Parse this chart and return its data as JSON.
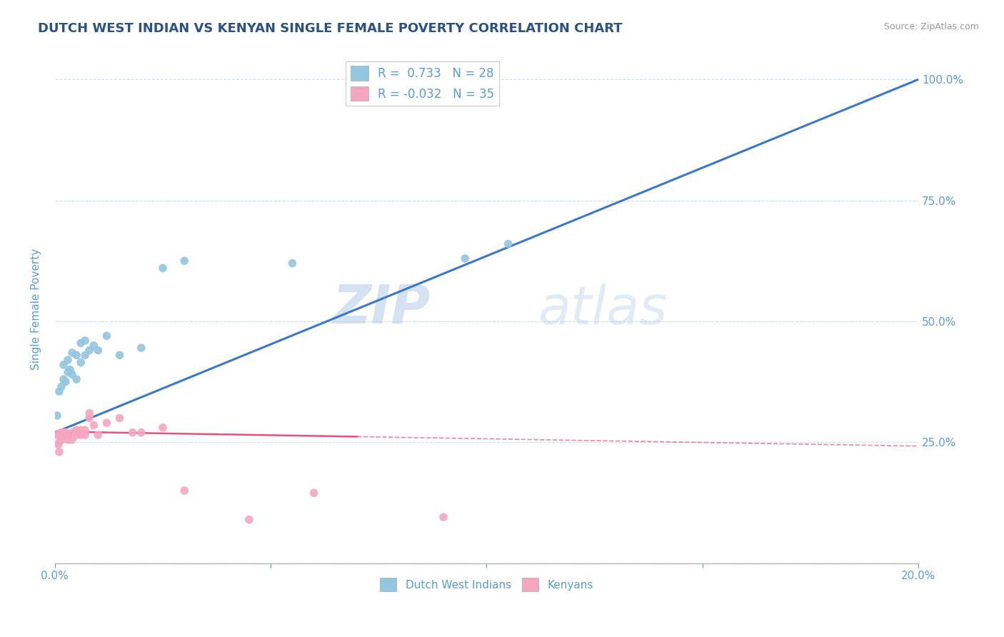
{
  "title": "DUTCH WEST INDIAN VS KENYAN SINGLE FEMALE POVERTY CORRELATION CHART",
  "source": "Source: ZipAtlas.com",
  "ylabel": "Single Female Poverty",
  "xlim": [
    0.0,
    0.2
  ],
  "ylim": [
    0.0,
    1.05
  ],
  "blue_color": "#92c5de",
  "pink_color": "#f4a6be",
  "blue_line_color": "#3c78c8",
  "pink_line_color": "#e8507a",
  "legend_blue_R": "0.733",
  "legend_blue_N": "28",
  "legend_pink_R": "-0.032",
  "legend_pink_N": "35",
  "dwi_x": [
    0.0005,
    0.001,
    0.0015,
    0.002,
    0.002,
    0.0025,
    0.003,
    0.003,
    0.0035,
    0.004,
    0.004,
    0.005,
    0.005,
    0.006,
    0.006,
    0.007,
    0.007,
    0.008,
    0.009,
    0.01,
    0.012,
    0.015,
    0.02,
    0.025,
    0.03,
    0.055,
    0.095,
    0.105
  ],
  "dwi_y": [
    0.305,
    0.355,
    0.365,
    0.38,
    0.41,
    0.375,
    0.395,
    0.42,
    0.4,
    0.39,
    0.435,
    0.38,
    0.43,
    0.415,
    0.455,
    0.43,
    0.46,
    0.44,
    0.45,
    0.44,
    0.47,
    0.43,
    0.445,
    0.61,
    0.625,
    0.62,
    0.63,
    0.66
  ],
  "ken_x": [
    0.0005,
    0.0008,
    0.001,
    0.001,
    0.0012,
    0.0015,
    0.0015,
    0.002,
    0.002,
    0.002,
    0.0025,
    0.003,
    0.003,
    0.003,
    0.004,
    0.004,
    0.005,
    0.005,
    0.006,
    0.006,
    0.007,
    0.007,
    0.008,
    0.008,
    0.009,
    0.01,
    0.012,
    0.015,
    0.018,
    0.02,
    0.025,
    0.03,
    0.045,
    0.06,
    0.09
  ],
  "ken_y": [
    0.265,
    0.245,
    0.25,
    0.23,
    0.265,
    0.27,
    0.255,
    0.27,
    0.265,
    0.26,
    0.27,
    0.265,
    0.255,
    0.265,
    0.27,
    0.255,
    0.265,
    0.275,
    0.275,
    0.265,
    0.265,
    0.275,
    0.3,
    0.31,
    0.285,
    0.265,
    0.29,
    0.3,
    0.27,
    0.27,
    0.28,
    0.15,
    0.09,
    0.145,
    0.095
  ],
  "watermark_zip": "ZIP",
  "watermark_atlas": "atlas",
  "title_color": "#2c5282",
  "grid_color": "#d0dde8",
  "tick_label_color": "#5b9bd5"
}
